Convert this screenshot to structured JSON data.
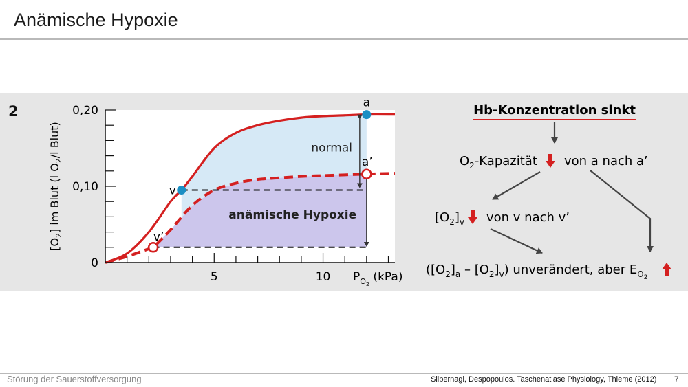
{
  "slide": {
    "title": "Anämische Hypoxie",
    "figure_number": "2",
    "footer_left": "Störung der Sauerstoffversorgung",
    "footer_source": "Silbernagl, Despopoulos. Taschenatlase Physiology, Thieme (2012)",
    "page_number": "7"
  },
  "chart_data": {
    "type": "line",
    "ylabel": "[O2] im Blut (l O2/l Blut)",
    "xlabel": "PO2 (kPa)",
    "xlim": [
      0,
      13.3
    ],
    "ylim": [
      0,
      0.2
    ],
    "x_ticks": [
      5,
      10
    ],
    "y_ticks": [
      0,
      0.1,
      0.2
    ],
    "y_tick_labels": [
      "0",
      "0,10",
      "0,20"
    ],
    "grid": false,
    "series": [
      {
        "style": "solid",
        "color": "#d42020",
        "x": [
          0,
          1,
          2,
          3,
          3.5,
          4,
          5,
          6,
          7,
          8,
          9,
          10,
          11,
          12,
          13.3
        ],
        "y": [
          0,
          0.012,
          0.04,
          0.08,
          0.095,
          0.113,
          0.15,
          0.17,
          0.18,
          0.186,
          0.19,
          0.192,
          0.193,
          0.194,
          0.194
        ]
      },
      {
        "style": "dashed",
        "color": "#d42020",
        "x": [
          0,
          1,
          2,
          2.2,
          3,
          4,
          5,
          6,
          7,
          8,
          9,
          10,
          11,
          12,
          13.3
        ],
        "y": [
          0,
          0.008,
          0.018,
          0.02,
          0.043,
          0.075,
          0.095,
          0.104,
          0.109,
          0.111,
          0.113,
          0.114,
          0.115,
          0.116,
          0.117
        ]
      }
    ],
    "points": [
      {
        "label": "a",
        "x": 12,
        "y": 0.194,
        "marker": "filled"
      },
      {
        "label": "v",
        "x": 3.5,
        "y": 0.095,
        "marker": "filled"
      },
      {
        "label": "a’",
        "x": 12,
        "y": 0.116,
        "marker": "open"
      },
      {
        "label": "v’",
        "x": 2.2,
        "y": 0.02,
        "marker": "open"
      }
    ],
    "annotations": {
      "normal": "normal",
      "anemic": "anämische Hypoxie"
    },
    "colors": {
      "normal_fill": "#d6e9f6",
      "anemic_fill": "#ccc6ec",
      "filled_point": "#1a8fc4",
      "curve": "#d42020"
    }
  },
  "flow": {
    "heading": "Hb-Konzentration sinkt",
    "line1_o": "O",
    "line1_sub": "2",
    "line1_text": "-Kapazität",
    "line1_tail": "von a nach a’",
    "line2_open": "[O",
    "line2_sub": "2",
    "line2_close": "]",
    "line2_subv": "v",
    "line2_tail": "von v nach v’",
    "line3_a": "([O",
    "line3_a_sub": "2",
    "line3_a_close": "]",
    "line3_a_subscript": "a",
    "line3_minus": " – [O",
    "line3_v_sub": "2",
    "line3_v_close": "]",
    "line3_v_subscript": "v",
    "line3_tail": ") unverändert, aber E",
    "line3_e_sub": "O",
    "line3_e_subsub": "2",
    "colors": {
      "arrow": "#444444",
      "down": "#d42020",
      "underline": "#d42020"
    }
  }
}
